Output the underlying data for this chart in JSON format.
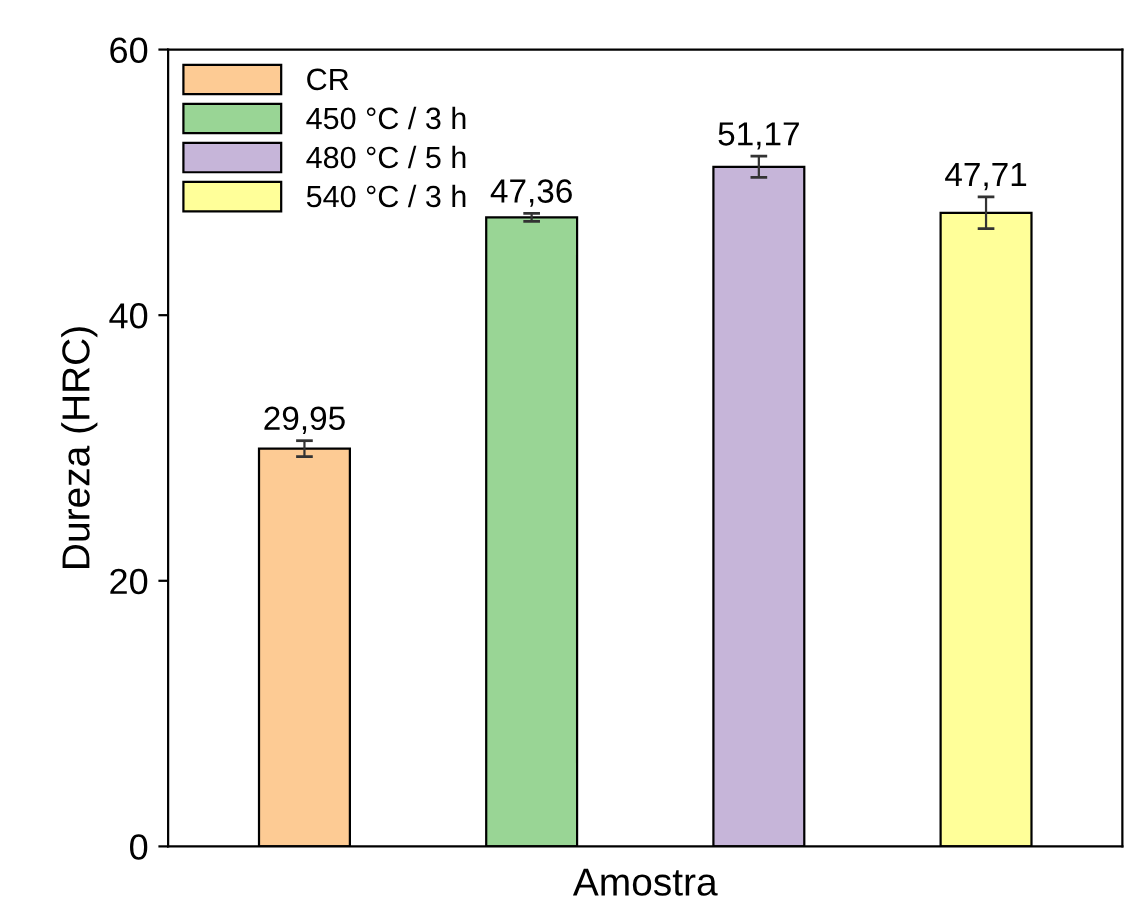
{
  "chart_data": {
    "type": "bar",
    "xlabel": "Amostra",
    "ylabel": "Dureza (HRC)",
    "categories": [
      null,
      null,
      null,
      null
    ],
    "series": [
      {
        "name": "CR",
        "color": "#fdcb94",
        "values": [
          29.95,
          null,
          null,
          null
        ],
        "errors": [
          0.6,
          null,
          null,
          null
        ],
        "value_labels": [
          "29,95",
          null,
          null,
          null
        ]
      },
      {
        "name": "450 °C / 3 h",
        "color": "#99d595",
        "values": [
          null,
          47.36,
          null,
          null
        ],
        "errors": [
          null,
          0.3,
          null,
          null
        ],
        "value_labels": [
          null,
          "47,36",
          null,
          null
        ]
      },
      {
        "name": "480 °C / 5 h",
        "color": "#c6b5d9",
        "values": [
          null,
          null,
          51.17,
          null
        ],
        "errors": [
          null,
          null,
          0.8,
          null
        ],
        "value_labels": [
          null,
          null,
          "51,17",
          null
        ]
      },
      {
        "name": "540 °C / 3 h",
        "color": "#ffff99",
        "values": [
          null,
          null,
          null,
          47.71
        ],
        "errors": [
          null,
          null,
          null,
          1.2
        ],
        "value_labels": [
          null,
          null,
          null,
          "47,71"
        ]
      }
    ],
    "ylim": [
      0,
      60
    ],
    "yticks": [
      0,
      20,
      40,
      60
    ],
    "legend": "top left",
    "grid": false
  }
}
